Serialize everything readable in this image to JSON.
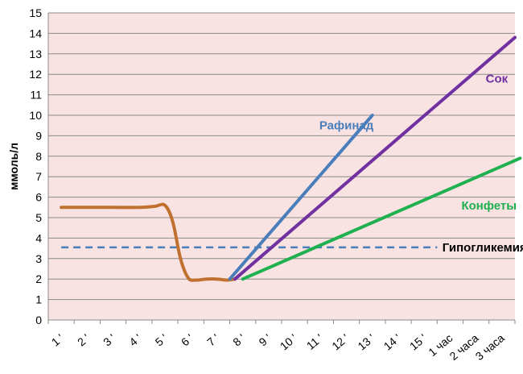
{
  "chart_data": {
    "type": "line",
    "title": "",
    "xlabel": "",
    "ylabel": "ммоль/л",
    "ylim": [
      0,
      15
    ],
    "y_ticks": [
      "0",
      "1",
      "2",
      "3",
      "4",
      "5",
      "6",
      "7",
      "8",
      "9",
      "10",
      "11",
      "12",
      "13",
      "14",
      "15"
    ],
    "categories": [
      "1 '",
      "2 '",
      "3 '",
      "4 '",
      "5 '",
      "6 '",
      "7 '",
      "8 '",
      "9 '",
      "10 '",
      "11 '",
      "12 '",
      "13 '",
      "14 '",
      "15 '",
      "1 час",
      "2 часа",
      "3 часа"
    ],
    "grid": true,
    "background": "#f9e3e2",
    "series": [
      {
        "name": "",
        "color": "#c0712f",
        "smooth": true,
        "points": [
          [
            1,
            5.5
          ],
          [
            2,
            5.5
          ],
          [
            3,
            5.5
          ],
          [
            4,
            5.5
          ],
          [
            4.6,
            5.55
          ],
          [
            5,
            5.6
          ],
          [
            5.3,
            4.8
          ],
          [
            5.6,
            3.0
          ],
          [
            5.9,
            2.05
          ],
          [
            6.2,
            1.95
          ],
          [
            6.6,
            2.0
          ],
          [
            7,
            2.0
          ],
          [
            7.4,
            1.95
          ],
          [
            7.7,
            2.0
          ]
        ]
      },
      {
        "name": "Рафинад",
        "color": "#4a7ebb",
        "points": [
          [
            7.5,
            2.0
          ],
          [
            13,
            10.0
          ]
        ],
        "label_pos": [
          12,
          9.5
        ]
      },
      {
        "name": "Сок",
        "color": "#7030a0",
        "points": [
          [
            7.7,
            2.0
          ],
          [
            18.5,
            13.8
          ]
        ],
        "label_pos": [
          17.8,
          11.8
        ]
      },
      {
        "name": "Конфеты",
        "color": "#1fb04f",
        "points": [
          [
            8.0,
            2.0
          ],
          [
            18.7,
            7.9
          ]
        ],
        "label_pos": [
          17.5,
          5.6
        ]
      },
      {
        "name": "Гипогликемия",
        "color": "#4a7ebb",
        "dashed": true,
        "label_color": "#000000",
        "points": [
          [
            1,
            3.55
          ],
          [
            15.5,
            3.55
          ]
        ],
        "label_pos": [
          15.7,
          3.55
        ]
      }
    ]
  }
}
